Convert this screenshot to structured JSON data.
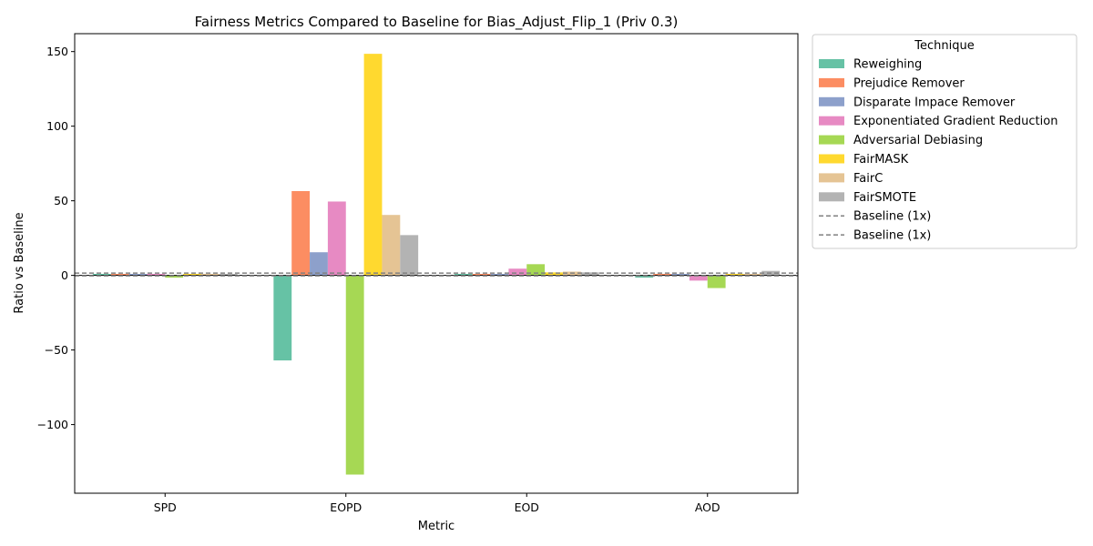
{
  "chart_data": {
    "type": "bar",
    "title": "Fairness Metrics Compared to Baseline for Bias_Adjust_Flip_1 (Priv 0.3)",
    "xlabel": "Metric",
    "ylabel": "Ratio vs Baseline",
    "categories": [
      "SPD",
      "EOPD",
      "EOD",
      "AOD"
    ],
    "ylim": [
      -146,
      162
    ],
    "yticks": [
      -100,
      -50,
      0,
      50,
      100,
      150
    ],
    "ytick_labels": [
      "−100",
      "−50",
      "0",
      "50",
      "100",
      "150"
    ],
    "legend_title": "Technique",
    "legend_position": "outside-upper-right",
    "grid": false,
    "baseline": {
      "name": "Baseline (1x)",
      "value": 1,
      "color": "#808080",
      "style": "dashed"
    },
    "baseline_labels": [
      "Baseline (1x)",
      "Baseline (1x)"
    ],
    "series": [
      {
        "name": "Reweighing",
        "color": "#66c2a5",
        "values": [
          1.0,
          -57.0,
          1.0,
          -1.5
        ]
      },
      {
        "name": "Prejudice Remover",
        "color": "#fc8d62",
        "values": [
          1.0,
          56.5,
          1.0,
          1.0
        ]
      },
      {
        "name": "Disparate Impace Remover",
        "color": "#8da0cb",
        "values": [
          1.0,
          15.5,
          1.0,
          1.0
        ]
      },
      {
        "name": "Exponentiated Gradient Reduction",
        "color": "#e78ac3",
        "values": [
          1.0,
          49.5,
          4.5,
          -3.5
        ]
      },
      {
        "name": "Adversarial Debiasing",
        "color": "#a6d854",
        "values": [
          -1.5,
          -133.5,
          7.5,
          -8.5
        ]
      },
      {
        "name": "FairMASK",
        "color": "#ffd92f",
        "values": [
          1.0,
          148.5,
          2.0,
          1.0
        ]
      },
      {
        "name": "FairC",
        "color": "#e5c494",
        "values": [
          1.0,
          40.5,
          2.5,
          1.0
        ]
      },
      {
        "name": "FairSMOTE",
        "color": "#b3b3b3",
        "values": [
          1.0,
          27.0,
          2.0,
          3.0
        ]
      }
    ]
  }
}
